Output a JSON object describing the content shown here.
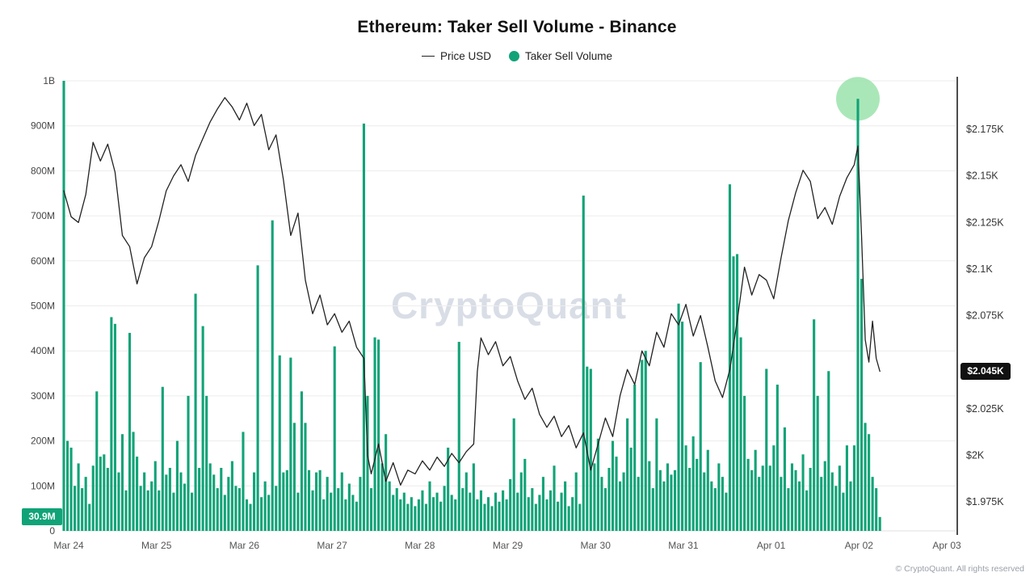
{
  "header": {
    "title": "Ethereum: Taker Sell Volume - Binance",
    "legend": [
      {
        "label": "Price USD",
        "swatch": "line-icon",
        "color": "#222222"
      },
      {
        "label": "Taker Sell Volume",
        "swatch": "dot-icon",
        "color": "#11A377"
      }
    ]
  },
  "watermark": "CryptoQuant",
  "footer": {
    "copyright": "© CryptoQuant. All rights reserved"
  },
  "badges": {
    "latest_volume": {
      "label": "30.9M",
      "value_m": 30.9,
      "bg": "#11A377"
    },
    "latest_price": {
      "label": "$2.045K",
      "value": 2045,
      "bg": "#111111"
    }
  },
  "chart_data": {
    "type": "bar+line",
    "title": "Ethereum: Taker Sell Volume - Binance",
    "x_unit": "hours from Mar 24 00:00",
    "x_ticks": [
      "Mar 24",
      "Mar 25",
      "Mar 26",
      "Mar 27",
      "Mar 28",
      "Mar 29",
      "Mar 30",
      "Mar 31",
      "Apr 01",
      "Apr 02",
      "Apr 03"
    ],
    "grid": "horizontal-only",
    "left_axis": {
      "title": "Taker Sell Volume",
      "unit": "millions",
      "max": 1000,
      "tick_values": [
        0,
        100,
        200,
        300,
        400,
        500,
        600,
        700,
        800,
        900,
        1000
      ],
      "tick_labels": [
        "0",
        "100M",
        "200M",
        "300M",
        "400M",
        "500M",
        "600M",
        "700M",
        "800M",
        "900M",
        "1B"
      ]
    },
    "right_axis": {
      "title": "Price USD",
      "tick_values": [
        1975,
        2000,
        2025,
        2075,
        2100,
        2125,
        2150,
        2175
      ],
      "tick_labels": [
        "$1.975K",
        "$2K",
        "$2.025K",
        "$2.075K",
        "$2.1K",
        "$2.125K",
        "$2.15K",
        "$2.175K"
      ]
    },
    "bars": {
      "name": "Taker Sell Volume",
      "color": "#11A377",
      "values_m": [
        1000,
        200,
        185,
        100,
        150,
        95,
        120,
        60,
        145,
        310,
        165,
        170,
        140,
        475,
        460,
        130,
        215,
        90,
        440,
        220,
        165,
        100,
        130,
        90,
        110,
        155,
        90,
        320,
        125,
        140,
        85,
        200,
        130,
        105,
        300,
        85,
        527,
        140,
        455,
        300,
        150,
        125,
        95,
        140,
        80,
        120,
        155,
        100,
        95,
        220,
        70,
        60,
        130,
        590,
        75,
        110,
        80,
        690,
        100,
        390,
        130,
        135,
        385,
        240,
        85,
        310,
        240,
        135,
        90,
        130,
        135,
        70,
        120,
        85,
        410,
        95,
        130,
        70,
        105,
        80,
        65,
        120,
        905,
        300,
        95,
        430,
        425,
        150,
        215,
        110,
        80,
        95,
        70,
        85,
        60,
        75,
        55,
        70,
        90,
        60,
        110,
        75,
        85,
        65,
        100,
        185,
        80,
        70,
        420,
        95,
        130,
        85,
        150,
        70,
        90,
        60,
        75,
        55,
        85,
        65,
        90,
        70,
        115,
        250,
        85,
        130,
        160,
        75,
        95,
        60,
        80,
        120,
        70,
        90,
        145,
        65,
        85,
        110,
        55,
        75,
        130,
        60,
        745,
        365,
        360,
        150,
        205,
        120,
        95,
        140,
        200,
        165,
        110,
        130,
        250,
        185,
        325,
        120,
        380,
        400,
        155,
        95,
        250,
        135,
        110,
        150,
        125,
        135,
        505,
        465,
        190,
        140,
        210,
        160,
        375,
        130,
        180,
        110,
        95,
        150,
        120,
        85,
        770,
        610,
        615,
        430,
        300,
        160,
        135,
        180,
        120,
        145,
        360,
        145,
        190,
        325,
        120,
        230,
        95,
        150,
        135,
        110,
        170,
        90,
        140,
        470,
        300,
        120,
        155,
        355,
        130,
        100,
        145,
        85,
        190,
        110,
        190,
        960,
        560,
        240,
        215,
        120,
        95,
        30.9
      ]
    },
    "price": {
      "name": "Price USD",
      "color": "#222222",
      "keypoints": [
        [
          0,
          2142
        ],
        [
          2,
          2128
        ],
        [
          4,
          2125
        ],
        [
          6,
          2140
        ],
        [
          8,
          2168
        ],
        [
          10,
          2158
        ],
        [
          12,
          2167
        ],
        [
          14,
          2152
        ],
        [
          16,
          2118
        ],
        [
          18,
          2112
        ],
        [
          20,
          2092
        ],
        [
          22,
          2106
        ],
        [
          24,
          2112
        ],
        [
          26,
          2126
        ],
        [
          28,
          2142
        ],
        [
          30,
          2150
        ],
        [
          32,
          2156
        ],
        [
          34,
          2147
        ],
        [
          36,
          2161
        ],
        [
          38,
          2170
        ],
        [
          40,
          2179
        ],
        [
          42,
          2186
        ],
        [
          44,
          2192
        ],
        [
          46,
          2187
        ],
        [
          48,
          2180
        ],
        [
          50,
          2189
        ],
        [
          52,
          2177
        ],
        [
          54,
          2183
        ],
        [
          56,
          2164
        ],
        [
          58,
          2172
        ],
        [
          60,
          2148
        ],
        [
          62,
          2118
        ],
        [
          64,
          2130
        ],
        [
          66,
          2094
        ],
        [
          68,
          2076
        ],
        [
          70,
          2086
        ],
        [
          72,
          2070
        ],
        [
          74,
          2076
        ],
        [
          76,
          2066
        ],
        [
          78,
          2072
        ],
        [
          80,
          2058
        ],
        [
          82,
          2052
        ],
        [
          83,
          2000
        ],
        [
          84,
          1990
        ],
        [
          86,
          2006
        ],
        [
          88,
          1986
        ],
        [
          90,
          1996
        ],
        [
          92,
          1984
        ],
        [
          94,
          1992
        ],
        [
          96,
          1990
        ],
        [
          98,
          1997
        ],
        [
          100,
          1992
        ],
        [
          102,
          1999
        ],
        [
          104,
          1994
        ],
        [
          106,
          2001
        ],
        [
          108,
          1996
        ],
        [
          110,
          2002
        ],
        [
          112,
          2006
        ],
        [
          113,
          2045
        ],
        [
          114,
          2063
        ],
        [
          116,
          2054
        ],
        [
          118,
          2061
        ],
        [
          120,
          2048
        ],
        [
          122,
          2053
        ],
        [
          124,
          2040
        ],
        [
          126,
          2030
        ],
        [
          128,
          2036
        ],
        [
          130,
          2022
        ],
        [
          132,
          2015
        ],
        [
          134,
          2021
        ],
        [
          136,
          2010
        ],
        [
          138,
          2016
        ],
        [
          140,
          2004
        ],
        [
          142,
          2012
        ],
        [
          144,
          1992
        ],
        [
          146,
          2006
        ],
        [
          148,
          2020
        ],
        [
          150,
          2010
        ],
        [
          152,
          2032
        ],
        [
          154,
          2046
        ],
        [
          156,
          2038
        ],
        [
          158,
          2056
        ],
        [
          160,
          2048
        ],
        [
          162,
          2066
        ],
        [
          164,
          2058
        ],
        [
          166,
          2076
        ],
        [
          168,
          2070
        ],
        [
          170,
          2081
        ],
        [
          172,
          2064
        ],
        [
          174,
          2075
        ],
        [
          176,
          2058
        ],
        [
          178,
          2040
        ],
        [
          180,
          2031
        ],
        [
          182,
          2046
        ],
        [
          184,
          2072
        ],
        [
          186,
          2101
        ],
        [
          188,
          2086
        ],
        [
          190,
          2097
        ],
        [
          192,
          2094
        ],
        [
          194,
          2084
        ],
        [
          196,
          2106
        ],
        [
          198,
          2126
        ],
        [
          200,
          2141
        ],
        [
          202,
          2153
        ],
        [
          204,
          2147
        ],
        [
          206,
          2127
        ],
        [
          208,
          2133
        ],
        [
          210,
          2124
        ],
        [
          212,
          2139
        ],
        [
          214,
          2149
        ],
        [
          216,
          2156
        ],
        [
          217,
          2166
        ],
        [
          218,
          2118
        ],
        [
          219,
          2062
        ],
        [
          220,
          2050
        ],
        [
          221,
          2072
        ],
        [
          222,
          2052
        ],
        [
          223,
          2045
        ]
      ]
    },
    "highlight": {
      "hour": 217,
      "value_m": 960,
      "color": "#9BE3AC"
    }
  }
}
